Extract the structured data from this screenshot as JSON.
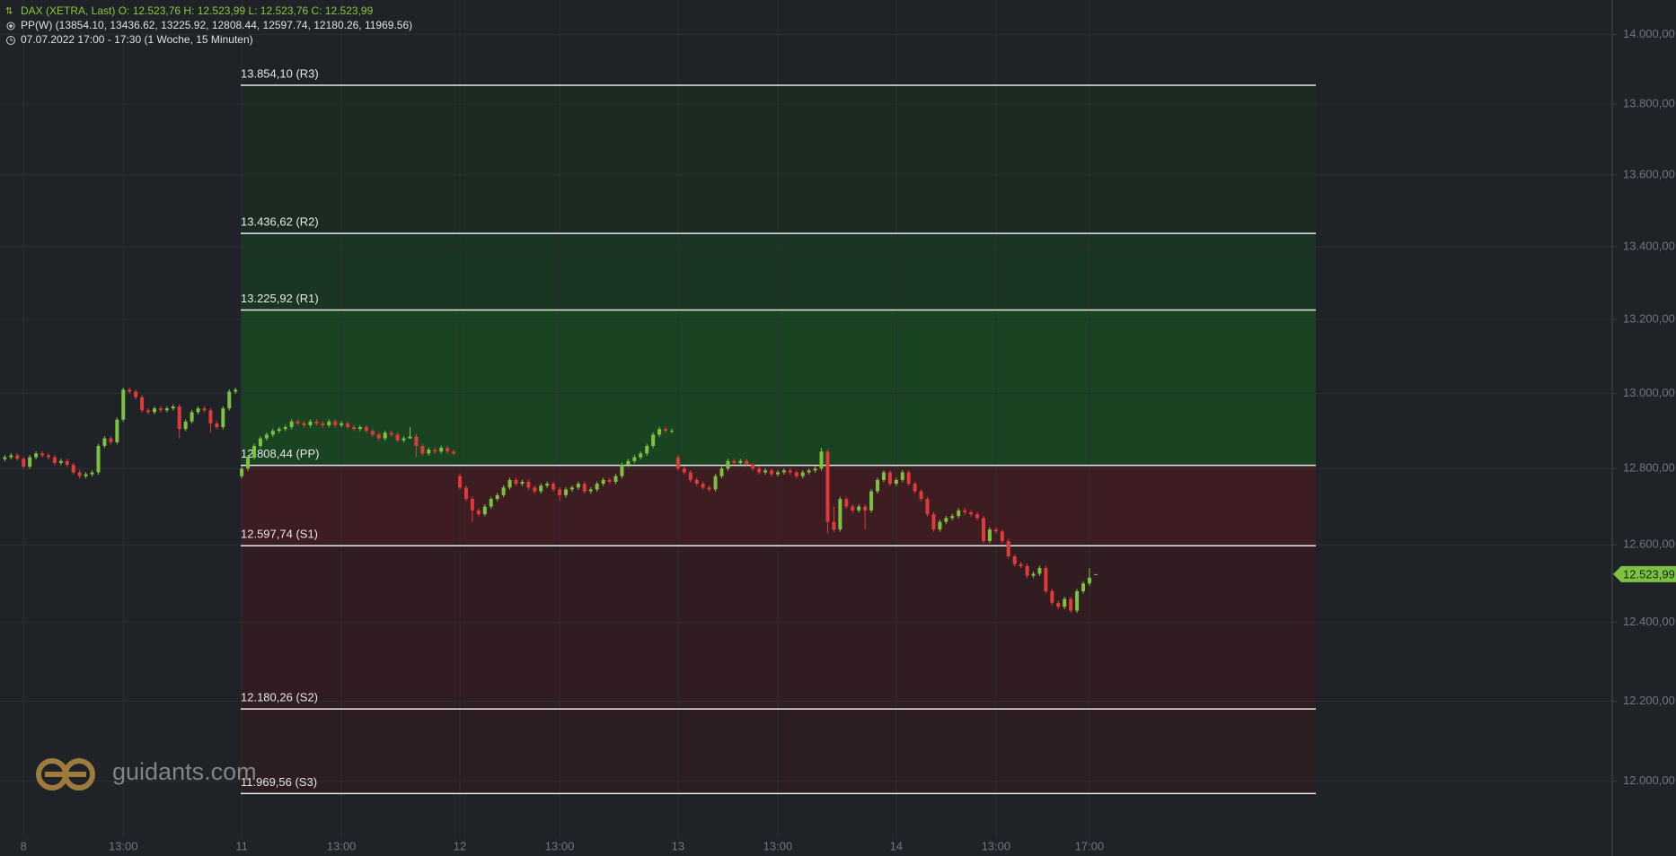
{
  "header": {
    "line1": "DAX (XETRA, Last)   O: 12.523,76   H: 12.523,99   L: 12.523,76   C: 12.523,99",
    "line2": "PP(W)  (13854.10, 13436.62, 13225.92, 12808.44, 12597.74, 12180.26, 11969.56)",
    "line3": "07.07.2022 17:00 - 17:30   (1 Woche, 15 Minuten)"
  },
  "watermark": "guidants.com",
  "chart_data": {
    "type": "candlestick",
    "log_scale": true,
    "grid": true,
    "ylim": [
      11860,
      14100
    ],
    "yticks": [
      {
        "value": 14000,
        "label": "14.000,00"
      },
      {
        "value": 13800,
        "label": "13.800,00"
      },
      {
        "value": 13600,
        "label": "13.600,00"
      },
      {
        "value": 13400,
        "label": "13.400,00"
      },
      {
        "value": 13200,
        "label": "13.200,00"
      },
      {
        "value": 13000,
        "label": "13.000,00"
      },
      {
        "value": 12800,
        "label": "12.800,00"
      },
      {
        "value": 12600,
        "label": "12.600,00"
      },
      {
        "value": 12400,
        "label": "12.400,00"
      },
      {
        "value": 12200,
        "label": "12.200,00"
      },
      {
        "value": 12000,
        "label": "12.000,00"
      }
    ],
    "price_label": {
      "value": 12523.99,
      "label": "12.523,99"
    },
    "pivots": [
      {
        "value": 13854.1,
        "label": "13.854,10 (R3)"
      },
      {
        "value": 13436.62,
        "label": "13.436,62 (R2)"
      },
      {
        "value": 13225.92,
        "label": "13.225,92 (R1)"
      },
      {
        "value": 12808.44,
        "label": "12.808,44 (PP)"
      },
      {
        "value": 12597.74,
        "label": "12.597,74 (S1)"
      },
      {
        "value": 12180.26,
        "label": "12.180,26 (S2)"
      },
      {
        "value": 11969.56,
        "label": "11.969,56 (S3)"
      }
    ],
    "zone_colors": [
      "#1b2b22",
      "#1a3523",
      "#1a4322",
      "#3d1c22",
      "#311c21",
      "#2b1d22"
    ],
    "categories": [
      null,
      null,
      null,
      "8",
      null,
      null,
      null,
      null,
      null,
      null,
      null,
      null,
      null,
      null,
      null,
      null,
      null,
      null,
      null,
      "13:00",
      null,
      null,
      null,
      null,
      null,
      null,
      null,
      null,
      null,
      null,
      null,
      null,
      null,
      null,
      null,
      null,
      null,
      null,
      "11",
      null,
      null,
      null,
      null,
      null,
      null,
      null,
      null,
      null,
      null,
      null,
      null,
      null,
      null,
      null,
      "13:00",
      null,
      null,
      null,
      null,
      null,
      null,
      null,
      null,
      null,
      null,
      null,
      null,
      null,
      null,
      null,
      null,
      null,
      null,
      "12",
      null,
      null,
      null,
      null,
      null,
      null,
      null,
      null,
      null,
      null,
      null,
      null,
      null,
      null,
      null,
      "13:00",
      null,
      null,
      null,
      null,
      null,
      null,
      null,
      null,
      null,
      null,
      null,
      null,
      null,
      null,
      null,
      null,
      null,
      null,
      "13",
      null,
      null,
      null,
      null,
      null,
      null,
      null,
      null,
      null,
      null,
      null,
      null,
      null,
      null,
      null,
      "13:00",
      null,
      null,
      null,
      null,
      null,
      null,
      null,
      null,
      null,
      null,
      null,
      null,
      null,
      null,
      null,
      null,
      null,
      null,
      "14",
      null,
      null,
      null,
      null,
      null,
      null,
      null,
      null,
      null,
      null,
      null,
      null,
      null,
      null,
      null,
      "13:00",
      null,
      null,
      null,
      null,
      null,
      null,
      null,
      null,
      null,
      null,
      null,
      null,
      null,
      null,
      "17:00",
      null
    ],
    "series": [
      {
        "color_up": "#7cc242",
        "color_down": "#e03a3a",
        "open": [
          12825,
          12830,
          12835,
          12826,
          12805,
          12830,
          12840,
          12835,
          12830,
          12815,
          12820,
          12810,
          12790,
          12780,
          12785,
          12790,
          12860,
          12880,
          12870,
          12930,
          13010,
          13005,
          12990,
          12955,
          12950,
          12960,
          12955,
          12960,
          12965,
          12905,
          12925,
          12950,
          12960,
          12955,
          12920,
          12910,
          12960,
          13005,
          12780,
          12800,
          12830,
          12860,
          12880,
          12890,
          12900,
          12905,
          12910,
          12925,
          12920,
          12915,
          12925,
          12920,
          12915,
          12925,
          12915,
          12920,
          12910,
          12905,
          12910,
          12900,
          12890,
          12880,
          12895,
          12890,
          12875,
          12880,
          12885,
          12860,
          12840,
          12850,
          12845,
          12855,
          12845,
          12780,
          12750,
          12720,
          12690,
          12680,
          12700,
          12720,
          12730,
          12750,
          12770,
          12760,
          12765,
          12750,
          12740,
          12755,
          12760,
          12745,
          12730,
          12745,
          12750,
          12760,
          12740,
          12745,
          12760,
          12770,
          12765,
          12780,
          12810,
          12820,
          12830,
          12840,
          12860,
          12890,
          12905,
          12900,
          12830,
          12800,
          12790,
          12770,
          12760,
          12750,
          12745,
          12780,
          12800,
          12820,
          12815,
          12820,
          12810,
          12800,
          12790,
          12795,
          12785,
          12790,
          12795,
          12790,
          12780,
          12790,
          12795,
          12800,
          12845,
          12660,
          12640,
          12720,
          12700,
          12690,
          12700,
          12690,
          12740,
          12770,
          12790,
          12760,
          12770,
          12790,
          12760,
          12740,
          12720,
          12680,
          12640,
          12660,
          12670,
          12675,
          12690,
          12685,
          12680,
          12670,
          12610,
          12640,
          12635,
          12610,
          12570,
          12550,
          12545,
          12520,
          12525,
          12540,
          12480,
          12450,
          12440,
          12460,
          12430,
          12480,
          12500,
          12523.76
        ],
        "high": [
          12836,
          12841,
          12841,
          12832,
          12836,
          12846,
          12846,
          12841,
          12836,
          12826,
          12826,
          12816,
          12796,
          12791,
          12796,
          12866,
          12886,
          12886,
          12936,
          13016,
          13016,
          13011,
          12996,
          12961,
          12966,
          12966,
          12966,
          12971,
          12971,
          12931,
          12956,
          12966,
          12966,
          12961,
          12926,
          12966,
          13011,
          13016,
          12806,
          12836,
          12866,
          12886,
          12896,
          12906,
          12911,
          12916,
          12931,
          12931,
          12926,
          12931,
          12931,
          12926,
          12931,
          12931,
          12926,
          12926,
          12916,
          12916,
          12916,
          12906,
          12896,
          12901,
          12901,
          12896,
          12886,
          12910,
          12891,
          12866,
          12856,
          12856,
          12861,
          12861,
          12851,
          12786,
          12756,
          12726,
          12696,
          12706,
          12726,
          12736,
          12756,
          12776,
          12776,
          12771,
          12771,
          12756,
          12761,
          12766,
          12766,
          12751,
          12751,
          12756,
          12766,
          12766,
          12751,
          12766,
          12776,
          12776,
          12786,
          12816,
          12826,
          12836,
          12846,
          12866,
          12896,
          12911,
          12911,
          12906,
          12836,
          12806,
          12796,
          12776,
          12766,
          12756,
          12786,
          12806,
          12826,
          12826,
          12826,
          12826,
          12816,
          12806,
          12801,
          12801,
          12796,
          12801,
          12801,
          12796,
          12796,
          12801,
          12806,
          12855,
          12851,
          12700,
          12726,
          12726,
          12706,
          12706,
          12706,
          12746,
          12776,
          12796,
          12796,
          12776,
          12796,
          12796,
          12766,
          12746,
          12726,
          12686,
          12666,
          12676,
          12681,
          12696,
          12696,
          12691,
          12686,
          12676,
          12646,
          12646,
          12641,
          12616,
          12576,
          12556,
          12551,
          12531,
          12546,
          12546,
          12486,
          12456,
          12466,
          12466,
          12486,
          12506,
          12540,
          12523.99
        ],
        "low": [
          12819,
          12824,
          12820,
          12799,
          12799,
          12824,
          12829,
          12824,
          12809,
          12809,
          12804,
          12784,
          12774,
          12774,
          12779,
          12784,
          12854,
          12864,
          12864,
          12924,
          12999,
          12984,
          12949,
          12944,
          12944,
          12949,
          12949,
          12954,
          12880,
          12899,
          12919,
          12944,
          12949,
          12895,
          12904,
          12904,
          12954,
          12999,
          12774,
          12794,
          12824,
          12854,
          12874,
          12884,
          12894,
          12899,
          12904,
          12914,
          12909,
          12909,
          12914,
          12909,
          12909,
          12909,
          12909,
          12904,
          12899,
          12899,
          12894,
          12884,
          12874,
          12874,
          12884,
          12869,
          12869,
          12879,
          12830,
          12834,
          12834,
          12839,
          12839,
          12839,
          12834,
          12744,
          12714,
          12660,
          12674,
          12674,
          12694,
          12714,
          12724,
          12744,
          12754,
          12754,
          12744,
          12734,
          12734,
          12749,
          12739,
          12715,
          12724,
          12739,
          12744,
          12734,
          12734,
          12739,
          12754,
          12759,
          12759,
          12774,
          12804,
          12814,
          12824,
          12834,
          12854,
          12884,
          12894,
          12894,
          12794,
          12784,
          12764,
          12754,
          12744,
          12739,
          12739,
          12774,
          12794,
          12809,
          12809,
          12804,
          12794,
          12784,
          12784,
          12779,
          12779,
          12784,
          12784,
          12774,
          12774,
          12784,
          12789,
          12794,
          12630,
          12634,
          12634,
          12694,
          12684,
          12684,
          12640,
          12684,
          12734,
          12764,
          12754,
          12754,
          12764,
          12754,
          12734,
          12714,
          12674,
          12634,
          12634,
          12654,
          12664,
          12669,
          12679,
          12674,
          12664,
          12604,
          12604,
          12629,
          12604,
          12564,
          12544,
          12539,
          12514,
          12514,
          12519,
          12474,
          12444,
          12434,
          12434,
          12424,
          12424,
          12474,
          12494,
          12523.76
        ],
        "close": [
          12830,
          12835,
          12826,
          12805,
          12830,
          12840,
          12835,
          12830,
          12815,
          12820,
          12810,
          12790,
          12780,
          12785,
          12790,
          12860,
          12880,
          12870,
          12930,
          13010,
          13005,
          12990,
          12955,
          12950,
          12960,
          12955,
          12960,
          12965,
          12905,
          12925,
          12950,
          12960,
          12955,
          12920,
          12910,
          12960,
          13005,
          13010,
          12800,
          12830,
          12860,
          12880,
          12890,
          12900,
          12905,
          12910,
          12925,
          12920,
          12915,
          12925,
          12920,
          12915,
          12925,
          12915,
          12920,
          12910,
          12905,
          12910,
          12900,
          12890,
          12880,
          12895,
          12890,
          12875,
          12880,
          12885,
          12860,
          12840,
          12850,
          12845,
          12855,
          12845,
          12840,
          12750,
          12720,
          12690,
          12680,
          12700,
          12720,
          12730,
          12750,
          12770,
          12760,
          12765,
          12750,
          12740,
          12755,
          12760,
          12745,
          12730,
          12745,
          12750,
          12760,
          12740,
          12745,
          12760,
          12770,
          12765,
          12780,
          12810,
          12820,
          12830,
          12840,
          12860,
          12890,
          12905,
          12900,
          12900,
          12800,
          12790,
          12770,
          12760,
          12750,
          12745,
          12780,
          12800,
          12820,
          12815,
          12820,
          12810,
          12800,
          12790,
          12795,
          12785,
          12790,
          12795,
          12790,
          12780,
          12790,
          12795,
          12800,
          12845,
          12660,
          12640,
          12720,
          12700,
          12690,
          12700,
          12690,
          12740,
          12770,
          12790,
          12760,
          12770,
          12790,
          12760,
          12740,
          12720,
          12680,
          12640,
          12660,
          12670,
          12675,
          12690,
          12685,
          12680,
          12670,
          12610,
          12640,
          12635,
          12610,
          12570,
          12550,
          12545,
          12520,
          12525,
          12540,
          12480,
          12450,
          12440,
          12460,
          12430,
          12480,
          12500,
          12515,
          12523.99
        ]
      }
    ]
  }
}
